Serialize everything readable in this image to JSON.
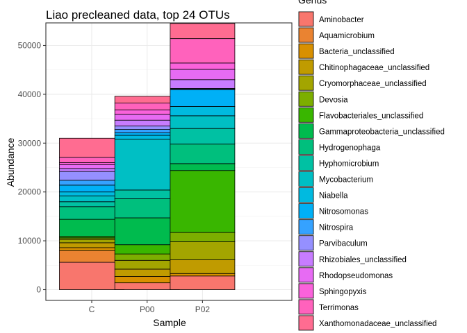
{
  "chart_data": {
    "type": "bar",
    "stacked": true,
    "title": "Liao precleaned data, top 24 OTUs",
    "xlabel": "Sample",
    "ylabel": "Abundance",
    "categories": [
      "C",
      "P00",
      "P02"
    ],
    "ylim": [
      0,
      52000
    ],
    "yticks": [
      0,
      10000,
      20000,
      30000,
      40000,
      50000
    ],
    "yticklabels": [
      "0",
      "10000",
      "20000",
      "30000",
      "40000",
      "50000"
    ],
    "grid": true,
    "legend": {
      "title": "Genus",
      "position": "right",
      "entries": [
        {
          "label": "Aminobacter",
          "color": "#F8766D"
        },
        {
          "label": "Aquamicrobium",
          "color": "#EA8331"
        },
        {
          "label": "Bacteria_unclassified",
          "color": "#D89000"
        },
        {
          "label": "Chitinophagaceae_unclassified",
          "color": "#C09B00"
        },
        {
          "label": "Cryomorphaceae_unclassified",
          "color": "#A3A500"
        },
        {
          "label": "Devosia",
          "color": "#7CAE00"
        },
        {
          "label": "Flavobacteriales_unclassified",
          "color": "#39B600"
        },
        {
          "label": "Gammaproteobacteria_unclassified",
          "color": "#00BB4E"
        },
        {
          "label": "Hydrogenophaga",
          "color": "#00BF7D"
        },
        {
          "label": "Hyphomicrobium",
          "color": "#00C1A3"
        },
        {
          "label": "Mycobacterium",
          "color": "#00BFC4"
        },
        {
          "label": "Niabella",
          "color": "#00BAE0"
        },
        {
          "label": "Nitrosomonas",
          "color": "#00B0F6"
        },
        {
          "label": "Nitrospira",
          "color": "#35A2FF"
        },
        {
          "label": "Parvibaculum",
          "color": "#9590FF"
        },
        {
          "label": "Rhizobiales_unclassified",
          "color": "#C77CFF"
        },
        {
          "label": "Rhodopseudomonas",
          "color": "#E76BF3"
        },
        {
          "label": "Sphingopyxis",
          "color": "#FA62DB"
        },
        {
          "label": "Terrimonas",
          "color": "#FF62BC"
        },
        {
          "label": "Xanthomonadaceae_unclassified",
          "color": "#FF6C91"
        }
      ]
    },
    "series": [
      {
        "name": "Aminobacter",
        "color": "#F8766D",
        "values": [
          5600,
          1400,
          2800
        ]
      },
      {
        "name": "Aquamicrobium",
        "color": "#EA8331",
        "values": [
          2400,
          0,
          0
        ]
      },
      {
        "name": "Bacteria_unclassified",
        "color": "#D89000",
        "values": [
          600,
          1300,
          500
        ]
      },
      {
        "name": "Chitinophagaceae_unclassified",
        "color": "#C09B00",
        "values": [
          1000,
          1500,
          2800
        ]
      },
      {
        "name": "Cryomorphaceae_unclassified",
        "color": "#A3A500",
        "values": [
          700,
          1800,
          3700
        ]
      },
      {
        "name": "Devosia",
        "color": "#7CAE00",
        "values": [
          300,
          1300,
          1900
        ]
      },
      {
        "name": "Flavobacteriales_unclassified",
        "color": "#39B600",
        "values": [
          300,
          1900,
          12700
        ]
      },
      {
        "name": "Gammaproteobacteria_unclassified",
        "color": "#00BB4E",
        "values": [
          3500,
          5500,
          1400
        ]
      },
      {
        "name": "Hydrogenophaga",
        "color": "#00BF7D",
        "values": [
          2600,
          3900,
          4000
        ]
      },
      {
        "name": "Hyphomicrobium",
        "color": "#00C1A3",
        "values": [
          1000,
          1800,
          3200
        ]
      },
      {
        "name": "Mycobacterium",
        "color": "#00BFC4",
        "values": [
          1200,
          10400,
          2600
        ]
      },
      {
        "name": "Niabella",
        "color": "#00BAE0",
        "values": [
          800,
          800,
          1900
        ]
      },
      {
        "name": "Nitrosomonas",
        "color": "#00B0F6",
        "values": [
          1400,
          500,
          3400
        ]
      },
      {
        "name": "Nitrospira",
        "color": "#35A2FF",
        "values": [
          1000,
          700,
          200
        ]
      },
      {
        "name": "Parvibaculum",
        "color": "#9590FF",
        "values": [
          1800,
          700,
          100
        ]
      },
      {
        "name": "Rhizobiales_unclassified",
        "color": "#C77CFF",
        "values": [
          600,
          1200,
          1800
        ]
      },
      {
        "name": "Rhodopseudomonas",
        "color": "#E76BF3",
        "values": [
          800,
          1200,
          2100
        ]
      },
      {
        "name": "Sphingopyxis",
        "color": "#FA62DB",
        "values": [
          400,
          900,
          1300
        ]
      },
      {
        "name": "Terrimonas",
        "color": "#FF62BC",
        "values": [
          1100,
          1400,
          5000
        ]
      },
      {
        "name": "Xanthomonadaceae_unclassified",
        "color": "#FF6C91",
        "values": [
          3900,
          1400,
          3100
        ]
      }
    ]
  }
}
